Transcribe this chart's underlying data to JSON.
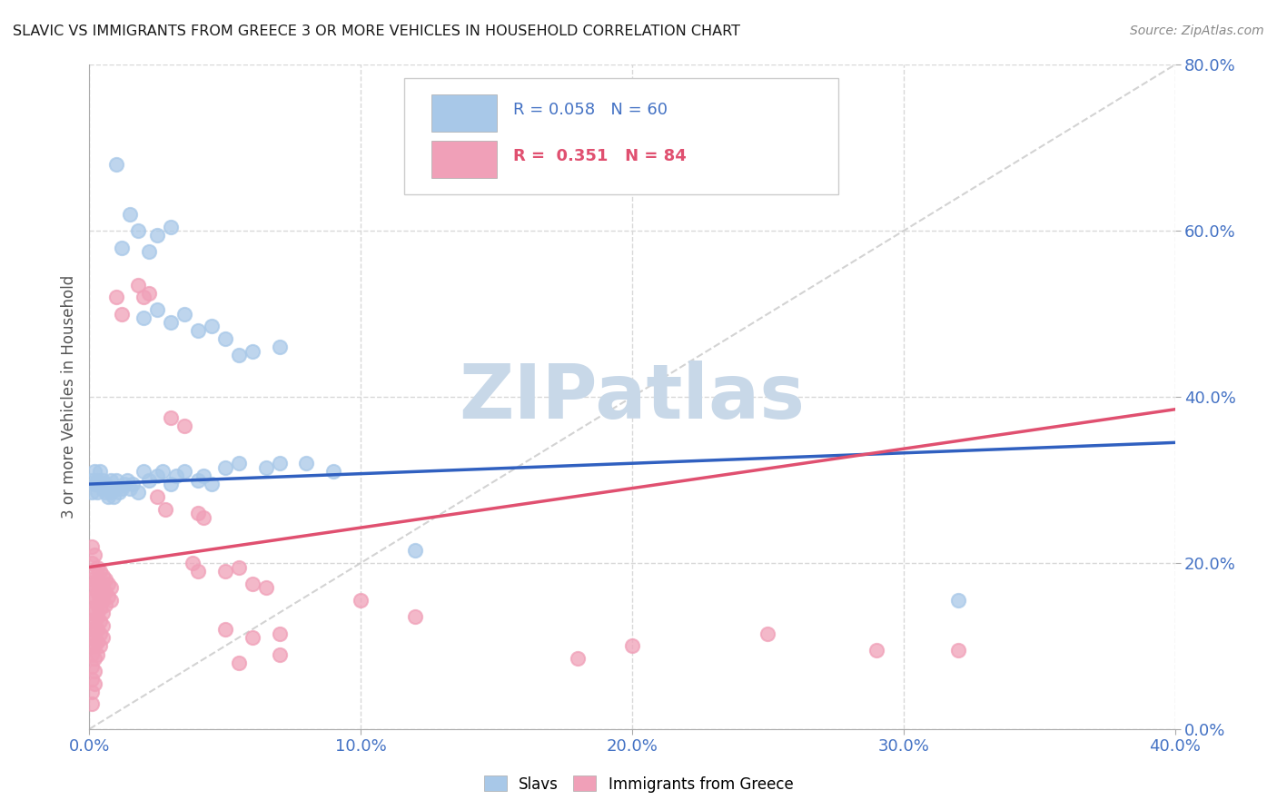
{
  "title": "SLAVIC VS IMMIGRANTS FROM GREECE 3 OR MORE VEHICLES IN HOUSEHOLD CORRELATION CHART",
  "source": "Source: ZipAtlas.com",
  "xlim": [
    0.0,
    0.4
  ],
  "ylim": [
    0.0,
    0.8
  ],
  "legend_entry1": {
    "label": "Slavs",
    "color": "#a8c8e8",
    "R": "0.058",
    "N": "60"
  },
  "legend_entry2": {
    "label": "Immigrants from Greece",
    "color": "#f0a0b8",
    "R": "0.351",
    "N": "84"
  },
  "slavs_scatter": [
    [
      0.001,
      0.3
    ],
    [
      0.001,
      0.285
    ],
    [
      0.002,
      0.31
    ],
    [
      0.002,
      0.295
    ],
    [
      0.003,
      0.3
    ],
    [
      0.003,
      0.285
    ],
    [
      0.004,
      0.295
    ],
    [
      0.004,
      0.31
    ],
    [
      0.005,
      0.29
    ],
    [
      0.005,
      0.3
    ],
    [
      0.006,
      0.285
    ],
    [
      0.006,
      0.295
    ],
    [
      0.007,
      0.28
    ],
    [
      0.007,
      0.29
    ],
    [
      0.008,
      0.285
    ],
    [
      0.008,
      0.3
    ],
    [
      0.009,
      0.28
    ],
    [
      0.01,
      0.29
    ],
    [
      0.01,
      0.3
    ],
    [
      0.011,
      0.285
    ],
    [
      0.012,
      0.29
    ],
    [
      0.013,
      0.295
    ],
    [
      0.014,
      0.3
    ],
    [
      0.015,
      0.29
    ],
    [
      0.016,
      0.295
    ],
    [
      0.018,
      0.285
    ],
    [
      0.02,
      0.31
    ],
    [
      0.022,
      0.3
    ],
    [
      0.025,
      0.305
    ],
    [
      0.027,
      0.31
    ],
    [
      0.03,
      0.295
    ],
    [
      0.032,
      0.305
    ],
    [
      0.035,
      0.31
    ],
    [
      0.04,
      0.3
    ],
    [
      0.042,
      0.305
    ],
    [
      0.045,
      0.295
    ],
    [
      0.05,
      0.315
    ],
    [
      0.055,
      0.32
    ],
    [
      0.065,
      0.315
    ],
    [
      0.07,
      0.32
    ],
    [
      0.08,
      0.32
    ],
    [
      0.09,
      0.31
    ],
    [
      0.01,
      0.68
    ],
    [
      0.015,
      0.62
    ],
    [
      0.018,
      0.6
    ],
    [
      0.012,
      0.58
    ],
    [
      0.025,
      0.595
    ],
    [
      0.03,
      0.605
    ],
    [
      0.022,
      0.575
    ],
    [
      0.02,
      0.495
    ],
    [
      0.025,
      0.505
    ],
    [
      0.03,
      0.49
    ],
    [
      0.035,
      0.5
    ],
    [
      0.04,
      0.48
    ],
    [
      0.045,
      0.485
    ],
    [
      0.05,
      0.47
    ],
    [
      0.055,
      0.45
    ],
    [
      0.06,
      0.455
    ],
    [
      0.07,
      0.46
    ],
    [
      0.12,
      0.215
    ],
    [
      0.32,
      0.155
    ]
  ],
  "greece_scatter": [
    [
      0.001,
      0.22
    ],
    [
      0.001,
      0.2
    ],
    [
      0.001,
      0.18
    ],
    [
      0.001,
      0.17
    ],
    [
      0.001,
      0.155
    ],
    [
      0.001,
      0.14
    ],
    [
      0.001,
      0.13
    ],
    [
      0.001,
      0.12
    ],
    [
      0.001,
      0.11
    ],
    [
      0.001,
      0.1
    ],
    [
      0.001,
      0.09
    ],
    [
      0.001,
      0.075
    ],
    [
      0.001,
      0.06
    ],
    [
      0.001,
      0.045
    ],
    [
      0.001,
      0.03
    ],
    [
      0.002,
      0.21
    ],
    [
      0.002,
      0.19
    ],
    [
      0.002,
      0.175
    ],
    [
      0.002,
      0.16
    ],
    [
      0.002,
      0.145
    ],
    [
      0.002,
      0.13
    ],
    [
      0.002,
      0.115
    ],
    [
      0.002,
      0.1
    ],
    [
      0.002,
      0.085
    ],
    [
      0.002,
      0.07
    ],
    [
      0.002,
      0.055
    ],
    [
      0.003,
      0.195
    ],
    [
      0.003,
      0.18
    ],
    [
      0.003,
      0.165
    ],
    [
      0.003,
      0.15
    ],
    [
      0.003,
      0.135
    ],
    [
      0.003,
      0.12
    ],
    [
      0.003,
      0.105
    ],
    [
      0.003,
      0.09
    ],
    [
      0.004,
      0.19
    ],
    [
      0.004,
      0.175
    ],
    [
      0.004,
      0.16
    ],
    [
      0.004,
      0.145
    ],
    [
      0.004,
      0.13
    ],
    [
      0.004,
      0.115
    ],
    [
      0.004,
      0.1
    ],
    [
      0.005,
      0.185
    ],
    [
      0.005,
      0.17
    ],
    [
      0.005,
      0.155
    ],
    [
      0.005,
      0.14
    ],
    [
      0.005,
      0.125
    ],
    [
      0.005,
      0.11
    ],
    [
      0.006,
      0.18
    ],
    [
      0.006,
      0.165
    ],
    [
      0.006,
      0.15
    ],
    [
      0.007,
      0.175
    ],
    [
      0.007,
      0.16
    ],
    [
      0.008,
      0.17
    ],
    [
      0.008,
      0.155
    ],
    [
      0.01,
      0.52
    ],
    [
      0.012,
      0.5
    ],
    [
      0.018,
      0.535
    ],
    [
      0.02,
      0.52
    ],
    [
      0.022,
      0.525
    ],
    [
      0.03,
      0.375
    ],
    [
      0.035,
      0.365
    ],
    [
      0.025,
      0.28
    ],
    [
      0.028,
      0.265
    ],
    [
      0.04,
      0.26
    ],
    [
      0.042,
      0.255
    ],
    [
      0.05,
      0.19
    ],
    [
      0.055,
      0.195
    ],
    [
      0.06,
      0.175
    ],
    [
      0.065,
      0.17
    ],
    [
      0.1,
      0.155
    ],
    [
      0.12,
      0.135
    ],
    [
      0.18,
      0.085
    ],
    [
      0.2,
      0.1
    ],
    [
      0.25,
      0.115
    ],
    [
      0.29,
      0.095
    ],
    [
      0.32,
      0.095
    ],
    [
      0.05,
      0.12
    ],
    [
      0.06,
      0.11
    ],
    [
      0.07,
      0.115
    ],
    [
      0.038,
      0.2
    ],
    [
      0.04,
      0.19
    ],
    [
      0.055,
      0.08
    ],
    [
      0.07,
      0.09
    ]
  ],
  "blue_line": {
    "x0": 0.0,
    "y0": 0.295,
    "x1": 0.4,
    "y1": 0.345
  },
  "pink_line": {
    "x0": 0.0,
    "y0": 0.195,
    "x1": 0.4,
    "y1": 0.385
  },
  "ref_line_color": "#c8c8c8",
  "blue_line_color": "#3060c0",
  "pink_line_color": "#e05070",
  "watermark_text": "ZIPatlas",
  "watermark_color": "#c8d8e8",
  "grid_color": "#d8d8d8",
  "title_color": "#1a1a1a",
  "axis_tick_color": "#4472c4",
  "ylabel": "3 or more Vehicles in Household",
  "ylabel_color": "#555555"
}
